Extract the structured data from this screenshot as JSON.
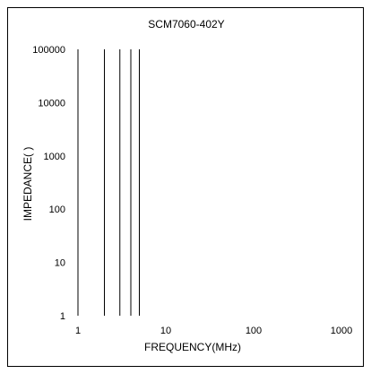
{
  "chart_data": {
    "type": "line",
    "title": "SCM7060-402Y",
    "xlabel": "FREQUENCY(MHz)",
    "ylabel": "IMPEDANCE(  )",
    "x_scale": "log",
    "y_scale": "log",
    "xlim": [
      1,
      1000
    ],
    "ylim": [
      1,
      100000
    ],
    "x_ticks": [
      "1",
      "10",
      "100",
      "1000"
    ],
    "y_ticks": [
      "1",
      "10",
      "100",
      "1000",
      "10000",
      "100000"
    ],
    "grid": false,
    "legend": "none",
    "vertical_lines_x": [
      1,
      2,
      3,
      4,
      5
    ]
  }
}
